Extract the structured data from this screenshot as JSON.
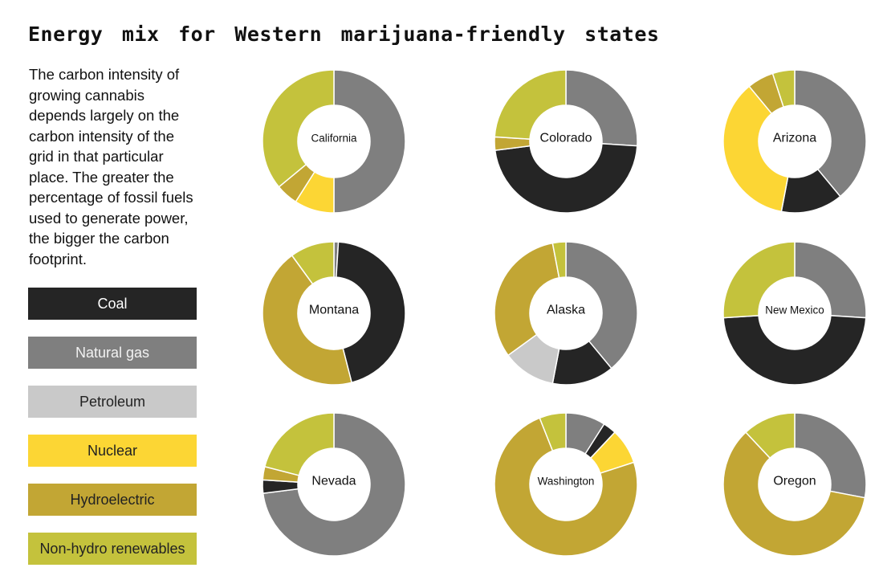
{
  "title": "Energy mix for Western marijuana-friendly states",
  "description": "The carbon intensity of growing cannabis depends largely on the carbon intensity of the grid in that particular place. The greater the percentage of fossil fuels used to generate power, the bigger the carbon footprint.",
  "colors": {
    "Coal": "#252525",
    "Natural gas": "#7f7f7f",
    "Petroleum": "#c9c9c9",
    "Nuclear": "#fcd634",
    "Hydroelectric": "#c2a634",
    "Non-hydro renewables": "#c4c23c"
  },
  "legend": [
    {
      "label": "Coal",
      "text_color": "#ffffff"
    },
    {
      "label": "Natural gas",
      "text_color": "#f2f2f2"
    },
    {
      "label": "Petroleum",
      "text_color": "#222222"
    },
    {
      "label": "Nuclear",
      "text_color": "#222222"
    },
    {
      "label": "Hydroelectric",
      "text_color": "#222222"
    },
    {
      "label": "Non-hydro renewables",
      "text_color": "#222222"
    }
  ],
  "chart_data": {
    "type": "donut",
    "categories": [
      "Coal",
      "Natural gas",
      "Petroleum",
      "Nuclear",
      "Hydroelectric",
      "Non-hydro renewables"
    ],
    "unit": "share of electricity generation (%)",
    "states": [
      {
        "name": "California",
        "values": {
          "Coal": 0,
          "Natural gas": 50,
          "Petroleum": 0,
          "Nuclear": 9,
          "Hydroelectric": 5,
          "Non-hydro renewables": 36
        }
      },
      {
        "name": "Colorado",
        "values": {
          "Coal": 47,
          "Natural gas": 26,
          "Petroleum": 0,
          "Nuclear": 0,
          "Hydroelectric": 3,
          "Non-hydro renewables": 24
        }
      },
      {
        "name": "Arizona",
        "values": {
          "Coal": 14,
          "Natural gas": 39,
          "Petroleum": 0,
          "Nuclear": 36,
          "Hydroelectric": 6,
          "Non-hydro renewables": 5
        }
      },
      {
        "name": "Montana",
        "values": {
          "Coal": 45,
          "Natural gas": 1,
          "Petroleum": 0,
          "Nuclear": 0,
          "Hydroelectric": 44,
          "Non-hydro renewables": 10
        }
      },
      {
        "name": "Alaska",
        "values": {
          "Coal": 14,
          "Natural gas": 39,
          "Petroleum": 12,
          "Nuclear": 0,
          "Hydroelectric": 32,
          "Non-hydro renewables": 3
        }
      },
      {
        "name": "New Mexico",
        "values": {
          "Coal": 48,
          "Natural gas": 26,
          "Petroleum": 0,
          "Nuclear": 0,
          "Hydroelectric": 0,
          "Non-hydro renewables": 26
        }
      },
      {
        "name": "Nevada",
        "values": {
          "Coal": 3,
          "Natural gas": 73,
          "Petroleum": 0,
          "Nuclear": 0,
          "Hydroelectric": 3,
          "Non-hydro renewables": 21
        }
      },
      {
        "name": "Washington",
        "values": {
          "Coal": 3,
          "Natural gas": 9,
          "Petroleum": 0,
          "Nuclear": 8,
          "Hydroelectric": 74,
          "Non-hydro renewables": 6
        }
      },
      {
        "name": "Oregon",
        "values": {
          "Coal": 0,
          "Natural gas": 28,
          "Petroleum": 0,
          "Nuclear": 0,
          "Hydroelectric": 60,
          "Non-hydro renewables": 12
        }
      }
    ]
  }
}
